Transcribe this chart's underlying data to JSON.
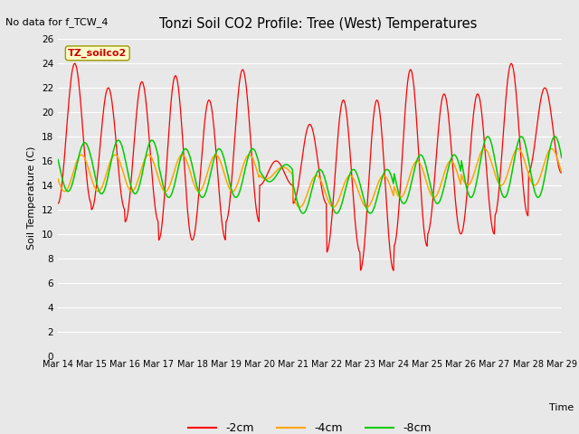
{
  "title": "Tonzi Soil CO2 Profile: Tree (West) Temperatures",
  "no_data_text": "No data for f_TCW_4",
  "ylabel": "Soil Temperature (C)",
  "xlabel": "Time",
  "ylim": [
    0,
    26
  ],
  "legend_label": "TZ_soilco2",
  "legend_entries": [
    "-2cm",
    "-4cm",
    "-8cm"
  ],
  "line_colors": [
    "#ff0000",
    "#ffa500",
    "#00cc00"
  ],
  "x_tick_labels": [
    "Mar 14",
    "Mar 15",
    "Mar 16",
    "Mar 17",
    "Mar 18",
    "Mar 19",
    "Mar 20",
    "Mar 21",
    "Mar 22",
    "Mar 23",
    "Mar 24",
    "Mar 25",
    "Mar 26",
    "Mar 27",
    "Mar 28",
    "Mar 29"
  ],
  "n_days": 15,
  "samples_per_day": 48
}
